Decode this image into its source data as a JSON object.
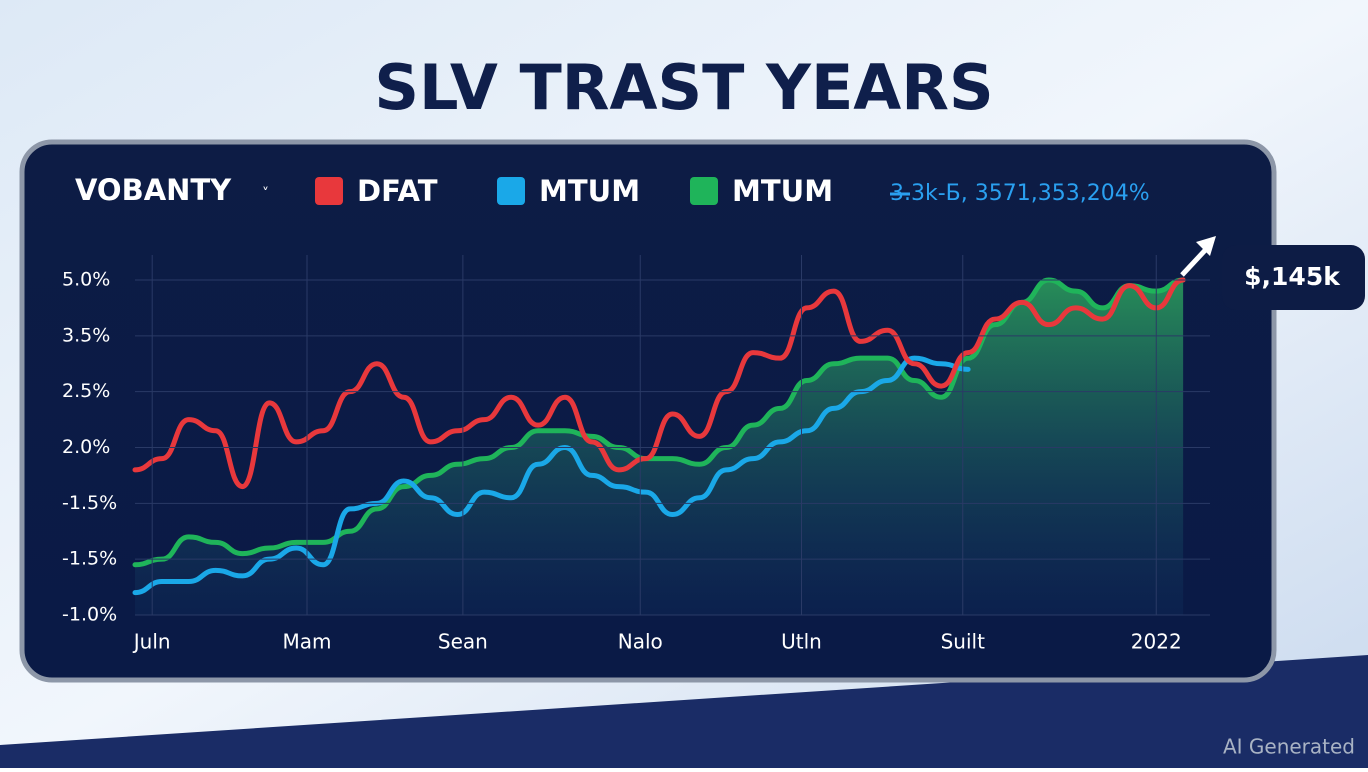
{
  "chart_data": {
    "type": "line",
    "title": "SLV TRAST YEARS",
    "selector": "VOBANTY",
    "legend_note": "3.3k-Б, 3571,353,204%",
    "callout": "$,145k",
    "watermark": "AI Generated",
    "xlim": [
      0,
      100
    ],
    "xticks": [
      {
        "value": 1.6,
        "label": "Juln"
      },
      {
        "value": 16,
        "label": "Mam"
      },
      {
        "value": 30.5,
        "label": "Sean"
      },
      {
        "value": 47,
        "label": "Nalo"
      },
      {
        "value": 62,
        "label": "Utln"
      },
      {
        "value": 77,
        "label": "Suilt"
      },
      {
        "value": 95,
        "label": "2022"
      }
    ],
    "ylim": [
      0,
      6
    ],
    "yticks": [
      {
        "value": 6,
        "label": "5.0%"
      },
      {
        "value": 5,
        "label": "3.5%"
      },
      {
        "value": 4,
        "label": "2.5%"
      },
      {
        "value": 3,
        "label": "2.0%"
      },
      {
        "value": 2,
        "label": "-1.5%"
      },
      {
        "value": 1,
        "label": "-1.5%"
      },
      {
        "value": 0,
        "label": "-1.0%"
      }
    ],
    "grid": true,
    "x": [
      0,
      2.5,
      5,
      7.5,
      10,
      12.5,
      15,
      17.5,
      20,
      22.5,
      25,
      27.5,
      30,
      32.5,
      35,
      37.5,
      40,
      42.5,
      45,
      47.5,
      50,
      52.5,
      55,
      57.5,
      60,
      62.5,
      65,
      67.5,
      70,
      72.5,
      75,
      77.5,
      80,
      82.5,
      85,
      87.5,
      90,
      92.5,
      95,
      97.5
    ],
    "series": [
      {
        "name": "MTUM",
        "color": "#1fb45a",
        "area": true,
        "values": [
          0.9,
          1.0,
          1.4,
          1.3,
          1.1,
          1.2,
          1.3,
          1.3,
          1.5,
          1.9,
          2.3,
          2.5,
          2.7,
          2.8,
          3.0,
          3.3,
          3.3,
          3.2,
          3.0,
          2.8,
          2.8,
          2.7,
          3.0,
          3.4,
          3.7,
          4.2,
          4.5,
          4.6,
          4.6,
          4.2,
          3.9,
          4.6,
          5.2,
          5.6,
          6.0,
          5.8,
          5.5,
          5.9,
          5.8,
          6.0
        ]
      },
      {
        "name": "MTUM",
        "color": "#1aa8e8",
        "values": [
          0.4,
          0.6,
          0.6,
          0.8,
          0.7,
          1.0,
          1.2,
          0.9,
          1.9,
          2.0,
          2.4,
          2.1,
          1.8,
          2.2,
          2.1,
          2.7,
          3.0,
          2.5,
          2.3,
          2.2,
          1.8,
          2.1,
          2.6,
          2.8,
          3.1,
          3.3,
          3.7,
          4.0,
          4.2,
          4.6,
          4.5,
          4.4,
          null,
          null,
          null,
          null,
          null,
          null,
          null,
          null
        ]
      },
      {
        "name": "DFAT",
        "color": "#e8383c",
        "values": [
          2.6,
          2.8,
          3.5,
          3.3,
          2.3,
          3.8,
          3.1,
          3.3,
          4.0,
          4.5,
          3.9,
          3.1,
          3.3,
          3.5,
          3.9,
          3.4,
          3.9,
          3.1,
          2.6,
          2.8,
          3.6,
          3.2,
          4.0,
          4.7,
          4.6,
          5.5,
          5.8,
          4.9,
          5.1,
          4.5,
          4.1,
          4.7,
          5.3,
          5.6,
          5.2,
          5.5,
          5.3,
          5.9,
          5.5,
          6.0
        ]
      }
    ]
  }
}
